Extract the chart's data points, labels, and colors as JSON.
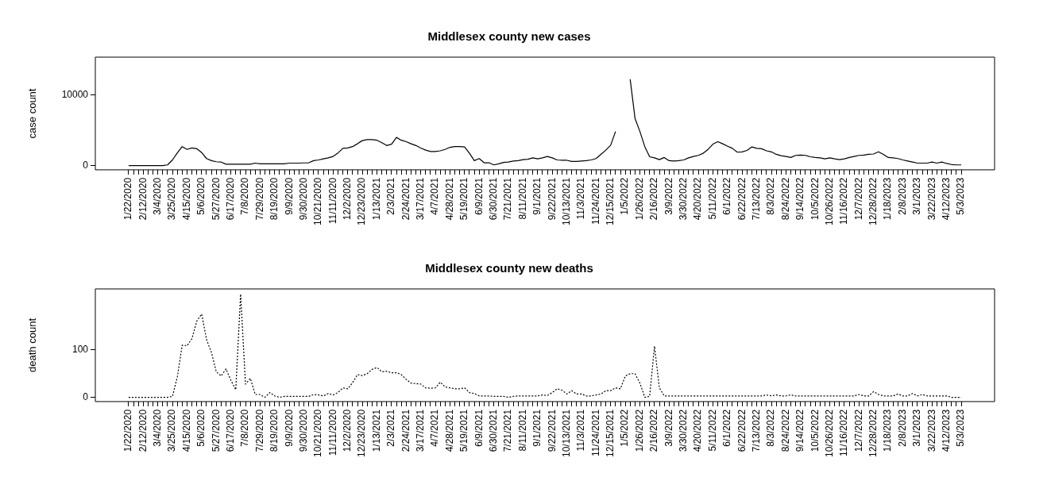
{
  "chart_data": [
    {
      "type": "line",
      "title": "Middlesex county new cases",
      "ylabel": "case count",
      "color": "#000000",
      "line_style": "solid",
      "grid": false,
      "legend": false,
      "categories": [
        "1/22/2020",
        null,
        null,
        "2/12/2020",
        null,
        null,
        "3/4/2020",
        null,
        null,
        "3/25/2020",
        null,
        null,
        "4/15/2020",
        null,
        null,
        "5/6/2020",
        null,
        null,
        "5/27/2020",
        null,
        null,
        "6/17/2020",
        null,
        null,
        "7/8/2020",
        null,
        null,
        "7/29/2020",
        null,
        null,
        "8/19/2020",
        null,
        null,
        "9/9/2020",
        null,
        null,
        "9/30/2020",
        null,
        null,
        "10/21/2020",
        null,
        null,
        "11/11/2020",
        null,
        null,
        "12/2/2020",
        null,
        null,
        "12/23/2020",
        null,
        null,
        "1/13/2021",
        null,
        null,
        "2/3/2021",
        null,
        null,
        "2/24/2021",
        null,
        null,
        "3/17/2021",
        null,
        null,
        "4/7/2021",
        null,
        null,
        "4/28/2021",
        null,
        null,
        "5/19/2021",
        null,
        null,
        "6/9/2021",
        null,
        null,
        "6/30/2021",
        null,
        null,
        "7/21/2021",
        null,
        null,
        "8/11/2021",
        null,
        null,
        "9/1/2021",
        null,
        null,
        "9/22/2021",
        null,
        null,
        "10/13/2021",
        null,
        null,
        "11/3/2021",
        null,
        null,
        "11/24/2021",
        null,
        null,
        "12/15/2021",
        null,
        null,
        "1/5/2022",
        null,
        null,
        "1/26/2022",
        null,
        null,
        "2/16/2022",
        null,
        null,
        "3/9/2022",
        null,
        null,
        "3/30/2022",
        null,
        null,
        "4/20/2022",
        null,
        null,
        "5/11/2022",
        null,
        null,
        "6/1/2022",
        null,
        null,
        "6/22/2022",
        null,
        null,
        "7/13/2022",
        null,
        null,
        "8/3/2022",
        null,
        null,
        "8/24/2022",
        null,
        null,
        "9/14/2022",
        null,
        null,
        "10/5/2022",
        null,
        null,
        "10/26/2022",
        null,
        null,
        "11/16/2022",
        null,
        null,
        "12/7/2022",
        null,
        null,
        "12/28/2022",
        null,
        null,
        "1/18/2023",
        null,
        null,
        "2/8/2023",
        null,
        null,
        "3/1/2023",
        null,
        null,
        "3/22/2023",
        null,
        null,
        "4/12/2023",
        null,
        null,
        "5/3/2023"
      ],
      "values": [
        0,
        0,
        0,
        0,
        0,
        0,
        0,
        0,
        100,
        800,
        1800,
        2700,
        2300,
        2500,
        2400,
        1850,
        1000,
        700,
        550,
        500,
        200,
        200,
        200,
        200,
        200,
        200,
        350,
        250,
        250,
        250,
        250,
        250,
        250,
        350,
        350,
        350,
        380,
        400,
        700,
        800,
        950,
        1100,
        1300,
        1800,
        2450,
        2500,
        2700,
        3100,
        3550,
        3700,
        3700,
        3600,
        3250,
        2850,
        3050,
        4000,
        3600,
        3400,
        3100,
        2850,
        2500,
        2200,
        2000,
        2000,
        2100,
        2300,
        2600,
        2700,
        2700,
        2650,
        1750,
        700,
        1000,
        400,
        400,
        100,
        250,
        450,
        500,
        650,
        700,
        850,
        900,
        1100,
        950,
        1100,
        1300,
        1100,
        800,
        750,
        750,
        600,
        600,
        650,
        700,
        800,
        1000,
        1600,
        2200,
        2900,
        4850,
        null,
        null,
        12250,
        6700,
        4850,
        2700,
        1250,
        1100,
        850,
        1150,
        700,
        650,
        700,
        800,
        1100,
        1300,
        1450,
        1750,
        2300,
        3050,
        3400,
        3100,
        2750,
        2450,
        1900,
        1950,
        2150,
        2650,
        2450,
        2400,
        2100,
        1950,
        1600,
        1400,
        1300,
        1150,
        1450,
        1500,
        1450,
        1250,
        1150,
        1100,
        950,
        1100,
        950,
        850,
        950,
        1150,
        1300,
        1450,
        1500,
        1600,
        1650,
        1950,
        1600,
        1150,
        1100,
        1000,
        800,
        650,
        500,
        350,
        350,
        350,
        500,
        350,
        500,
        300,
        150,
        100,
        100
      ],
      "ylim": [
        -600,
        15400
      ],
      "yticks": [
        0,
        10000
      ]
    },
    {
      "type": "line",
      "title": "Middlesex county new deaths",
      "ylabel": "death count",
      "color": "#000000",
      "line_style": "dotted",
      "grid": false,
      "legend": false,
      "categories": [
        "1/22/2020",
        null,
        null,
        "2/12/2020",
        null,
        null,
        "3/4/2020",
        null,
        null,
        "3/25/2020",
        null,
        null,
        "4/15/2020",
        null,
        null,
        "5/6/2020",
        null,
        null,
        "5/27/2020",
        null,
        null,
        "6/17/2020",
        null,
        null,
        "7/8/2020",
        null,
        null,
        "7/29/2020",
        null,
        null,
        "8/19/2020",
        null,
        null,
        "9/9/2020",
        null,
        null,
        "9/30/2020",
        null,
        null,
        "10/21/2020",
        null,
        null,
        "11/11/2020",
        null,
        null,
        "12/2/2020",
        null,
        null,
        "12/23/2020",
        null,
        null,
        "1/13/2021",
        null,
        null,
        "2/3/2021",
        null,
        null,
        "2/24/2021",
        null,
        null,
        "3/17/2021",
        null,
        null,
        "4/7/2021",
        null,
        null,
        "4/28/2021",
        null,
        null,
        "5/19/2021",
        null,
        null,
        "6/9/2021",
        null,
        null,
        "6/30/2021",
        null,
        null,
        "7/21/2021",
        null,
        null,
        "8/11/2021",
        null,
        null,
        "9/1/2021",
        null,
        null,
        "9/22/2021",
        null,
        null,
        "10/13/2021",
        null,
        null,
        "11/3/2021",
        null,
        null,
        "11/24/2021",
        null,
        null,
        "12/15/2021",
        null,
        null,
        "1/5/2022",
        null,
        null,
        "1/26/2022",
        null,
        null,
        "2/16/2022",
        null,
        null,
        "3/9/2022",
        null,
        null,
        "3/30/2022",
        null,
        null,
        "4/20/2022",
        null,
        null,
        "5/11/2022",
        null,
        null,
        "6/1/2022",
        null,
        null,
        "6/22/2022",
        null,
        null,
        "7/13/2022",
        null,
        null,
        "8/3/2022",
        null,
        null,
        "8/24/2022",
        null,
        null,
        "9/14/2022",
        null,
        null,
        "10/5/2022",
        null,
        null,
        "10/26/2022",
        null,
        null,
        "11/16/2022",
        null,
        null,
        "12/7/2022",
        null,
        null,
        "12/28/2022",
        null,
        null,
        "1/18/2023",
        null,
        null,
        "2/8/2023",
        null,
        null,
        "3/1/2023",
        null,
        null,
        "3/22/2023",
        null,
        null,
        "4/12/2023",
        null,
        null,
        "5/3/2023"
      ],
      "values": [
        0,
        0,
        0,
        0,
        0,
        0,
        0,
        0,
        0,
        2,
        43,
        110,
        109,
        124,
        161,
        176,
        122,
        95,
        54,
        45,
        60,
        36,
        16,
        218,
        28,
        40,
        6,
        6,
        0,
        10,
        3,
        0,
        2,
        2,
        2,
        2,
        2,
        2,
        6,
        5,
        3,
        8,
        5,
        10,
        20,
        18,
        31,
        48,
        46,
        50,
        59,
        63,
        54,
        55,
        52,
        52,
        48,
        38,
        30,
        29,
        28,
        20,
        19,
        20,
        32,
        22,
        20,
        18,
        18,
        20,
        10,
        8,
        3,
        3,
        3,
        2,
        2,
        2,
        0,
        2,
        3,
        3,
        3,
        3,
        3,
        5,
        4,
        10,
        18,
        15,
        7,
        14,
        7,
        7,
        3,
        3,
        5,
        7,
        14,
        14,
        20,
        18,
        45,
        50,
        50,
        30,
        0,
        2,
        108,
        20,
        3,
        3,
        3,
        3,
        3,
        3,
        3,
        3,
        3,
        3,
        3,
        3,
        3,
        3,
        3,
        3,
        3,
        3,
        3,
        3,
        3,
        5,
        3,
        5,
        3,
        3,
        5,
        3,
        3,
        3,
        3,
        3,
        3,
        3,
        3,
        3,
        3,
        3,
        3,
        3,
        6,
        3,
        3,
        12,
        6,
        3,
        3,
        3,
        7,
        3,
        3,
        8,
        3,
        6,
        3,
        3,
        3,
        3,
        3,
        0,
        0,
        0
      ],
      "ylim": [
        -9,
        229
      ],
      "yticks": [
        0,
        100
      ]
    }
  ]
}
